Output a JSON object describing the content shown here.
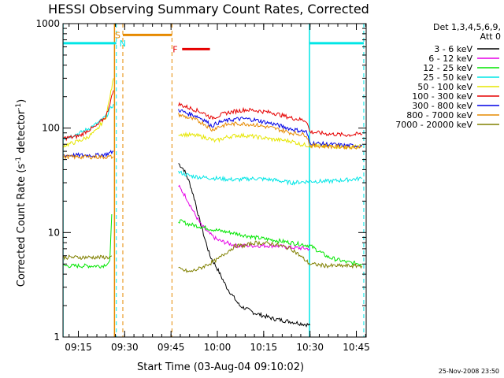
{
  "chart_data": {
    "type": "line",
    "title": "HESSI Observing Summary Count Rates, Corrected",
    "xlabel": "Start Time (03-Aug-04 09:10:02)",
    "ylabel_main": "Corrected Count Rate (s",
    "ylabel_sup1": "-1",
    "ylabel_mid": " detector",
    "ylabel_sup2": "-1",
    "ylabel_end": ")",
    "yscale": "log",
    "ylim": [
      1,
      1000
    ],
    "xlim": [
      9.1672,
      10.803
    ],
    "x_ticks": [
      {
        "v": 9.25,
        "label": "09:15"
      },
      {
        "v": 9.5,
        "label": "09:30"
      },
      {
        "v": 9.75,
        "label": "09:45"
      },
      {
        "v": 10.0,
        "label": "10:00"
      },
      {
        "v": 10.25,
        "label": "10:15"
      },
      {
        "v": 10.5,
        "label": "10:30"
      },
      {
        "v": 10.75,
        "label": "10:45"
      }
    ],
    "y_ticks": [
      {
        "v": 1,
        "label": "1"
      },
      {
        "v": 10,
        "label": "10"
      },
      {
        "v": 100,
        "label": "100"
      },
      {
        "v": 1000,
        "label": "1000"
      }
    ],
    "legend_header": [
      "Det 1,3,4,5,6,9,",
      "Att 0"
    ],
    "legend_position": "right",
    "timestamp": "25-Nov-2008 23:50",
    "series": [
      {
        "name": "3 - 6 keV",
        "color": "#000000",
        "segments": [
          [
            [
              9.79,
              46
            ],
            [
              9.82,
              40
            ],
            [
              9.85,
              30
            ],
            [
              9.88,
              20
            ],
            [
              9.9,
              14
            ],
            [
              9.93,
              9
            ],
            [
              9.96,
              6
            ],
            [
              10.0,
              4.5
            ],
            [
              10.05,
              3
            ],
            [
              10.12,
              2
            ],
            [
              10.2,
              1.7
            ],
            [
              10.3,
              1.5
            ],
            [
              10.4,
              1.4
            ],
            [
              10.5,
              1.3
            ]
          ]
        ]
      },
      {
        "name": "6 - 12 keV",
        "color": "#e600e6",
        "segments": [
          [
            [
              9.79,
              28
            ],
            [
              9.83,
              22
            ],
            [
              9.87,
              16
            ],
            [
              9.91,
              12
            ],
            [
              9.95,
              10
            ],
            [
              10.0,
              8.5
            ],
            [
              10.1,
              7.5
            ],
            [
              10.2,
              7.5
            ],
            [
              10.3,
              7.5
            ],
            [
              10.4,
              7.2
            ],
            [
              10.5,
              7.0
            ]
          ]
        ]
      },
      {
        "name": "12 - 25 keV",
        "color": "#00e600",
        "segments": [
          [
            [
              9.17,
              4.8
            ],
            [
              9.22,
              4.8
            ],
            [
              9.28,
              4.8
            ],
            [
              9.33,
              4.8
            ],
            [
              9.38,
              4.8
            ],
            [
              9.42,
              5.2
            ],
            [
              9.43,
              15
            ]
          ],
          [
            [
              9.79,
              13
            ],
            [
              9.85,
              12
            ],
            [
              9.9,
              11.5
            ],
            [
              10.0,
              10.5
            ],
            [
              10.1,
              9.8
            ],
            [
              10.2,
              9.0
            ],
            [
              10.3,
              8.5
            ],
            [
              10.4,
              8.0
            ],
            [
              10.5,
              7.5
            ],
            [
              10.6,
              5.8
            ],
            [
              10.7,
              5.2
            ],
            [
              10.78,
              5.0
            ]
          ]
        ]
      },
      {
        "name": "25 - 50 keV",
        "color": "#00e6e6",
        "segments": [
          [
            [
              9.17,
              80
            ],
            [
              9.22,
              85
            ],
            [
              9.26,
              90
            ],
            [
              9.3,
              98
            ],
            [
              9.35,
              110
            ],
            [
              9.4,
              130
            ],
            [
              9.44,
              170
            ]
          ],
          [
            [
              9.79,
              38
            ],
            [
              9.85,
              35
            ],
            [
              9.9,
              34
            ],
            [
              10.0,
              33
            ],
            [
              10.1,
              32
            ],
            [
              10.2,
              33
            ],
            [
              10.3,
              32
            ],
            [
              10.4,
              30
            ],
            [
              10.5,
              31
            ],
            [
              10.6,
              31
            ],
            [
              10.7,
              32
            ],
            [
              10.78,
              33
            ]
          ]
        ]
      },
      {
        "name": "50 - 100 keV",
        "color": "#e6e600",
        "segments": [
          [
            [
              9.17,
              68
            ],
            [
              9.22,
              72
            ],
            [
              9.26,
              76
            ],
            [
              9.3,
              82
            ],
            [
              9.35,
              95
            ],
            [
              9.4,
              130
            ],
            [
              9.44,
              300
            ]
          ],
          [
            [
              9.79,
              88
            ],
            [
              9.85,
              86
            ],
            [
              9.9,
              84
            ],
            [
              9.95,
              80
            ],
            [
              9.99,
              75
            ],
            [
              10.05,
              82
            ],
            [
              10.1,
              85
            ],
            [
              10.15,
              85
            ],
            [
              10.2,
              83
            ],
            [
              10.3,
              78
            ],
            [
              10.4,
              75
            ],
            [
              10.45,
              70
            ],
            [
              10.5,
              68
            ],
            [
              10.6,
              67
            ],
            [
              10.7,
              66
            ],
            [
              10.78,
              67
            ]
          ]
        ]
      },
      {
        "name": "100 - 300 keV",
        "color": "#e60000",
        "segments": [
          [
            [
              9.17,
              80
            ],
            [
              9.22,
              82
            ],
            [
              9.26,
              85
            ],
            [
              9.3,
              95
            ],
            [
              9.35,
              105
            ],
            [
              9.4,
              130
            ],
            [
              9.44,
              230
            ]
          ],
          [
            [
              9.79,
              170
            ],
            [
              9.83,
              160
            ],
            [
              9.88,
              150
            ],
            [
              9.93,
              138
            ],
            [
              9.97,
              125
            ],
            [
              10.0,
              130
            ],
            [
              10.05,
              140
            ],
            [
              10.1,
              145
            ],
            [
              10.15,
              150
            ],
            [
              10.2,
              148
            ],
            [
              10.3,
              140
            ],
            [
              10.4,
              125
            ],
            [
              10.48,
              118
            ],
            [
              10.5,
              92
            ],
            [
              10.6,
              88
            ],
            [
              10.7,
              86
            ],
            [
              10.78,
              88
            ]
          ]
        ]
      },
      {
        "name": "300 - 800 keV",
        "color": "#0000e6",
        "segments": [
          [
            [
              9.17,
              55
            ],
            [
              9.22,
              55
            ],
            [
              9.26,
              55
            ],
            [
              9.3,
              55
            ],
            [
              9.35,
              55
            ],
            [
              9.4,
              56
            ],
            [
              9.44,
              60
            ]
          ],
          [
            [
              9.79,
              150
            ],
            [
              9.83,
              140
            ],
            [
              9.88,
              132
            ],
            [
              9.93,
              120
            ],
            [
              9.97,
              105
            ],
            [
              10.0,
              112
            ],
            [
              10.05,
              118
            ],
            [
              10.1,
              122
            ],
            [
              10.15,
              123
            ],
            [
              10.2,
              120
            ],
            [
              10.3,
              110
            ],
            [
              10.4,
              98
            ],
            [
              10.48,
              92
            ],
            [
              10.5,
              72
            ],
            [
              10.6,
              70
            ],
            [
              10.7,
              68
            ],
            [
              10.78,
              68
            ]
          ]
        ]
      },
      {
        "name": "800 - 7000 keV",
        "color": "#e68a00",
        "segments": [
          [
            [
              9.17,
              53
            ],
            [
              9.22,
              53
            ],
            [
              9.26,
              53
            ],
            [
              9.3,
              53
            ],
            [
              9.35,
              53
            ],
            [
              9.4,
              53
            ],
            [
              9.44,
              53
            ]
          ],
          [
            [
              9.79,
              135
            ],
            [
              9.83,
              128
            ],
            [
              9.88,
              120
            ],
            [
              9.93,
              110
            ],
            [
              9.97,
              96
            ],
            [
              10.0,
              102
            ],
            [
              10.05,
              108
            ],
            [
              10.1,
              110
            ],
            [
              10.15,
              110
            ],
            [
              10.2,
              108
            ],
            [
              10.3,
              100
            ],
            [
              10.4,
              90
            ],
            [
              10.48,
              86
            ],
            [
              10.5,
              68
            ],
            [
              10.6,
              67
            ],
            [
              10.7,
              66
            ],
            [
              10.78,
              66
            ]
          ]
        ]
      },
      {
        "name": "7000 - 20000 keV",
        "color": "#808000",
        "segments": [
          [
            [
              9.17,
              5.8
            ],
            [
              9.22,
              5.8
            ],
            [
              9.28,
              5.8
            ],
            [
              9.33,
              5.8
            ],
            [
              9.38,
              5.8
            ],
            [
              9.42,
              5.8
            ],
            [
              9.43,
              6
            ]
          ],
          [
            [
              9.79,
              4.5
            ],
            [
              9.85,
              4.2
            ],
            [
              9.9,
              4.5
            ],
            [
              10.0,
              5.5
            ],
            [
              10.05,
              6.5
            ],
            [
              10.1,
              7.5
            ],
            [
              10.15,
              7.5
            ],
            [
              10.2,
              8.0
            ],
            [
              10.3,
              7.8
            ],
            [
              10.4,
              7.0
            ],
            [
              10.5,
              5.0
            ],
            [
              10.6,
              4.8
            ],
            [
              10.7,
              4.8
            ],
            [
              10.78,
              4.8
            ]
          ]
        ]
      }
    ],
    "background_series": [
      {
        "name": "12 - 25 keV",
        "color": "#00e600",
        "points": [
          [
            9.17,
            4.8
          ],
          [
            9.43,
            4.8
          ]
        ]
      }
    ],
    "markers": {
      "solid_cyan_x": [
        9.1672,
        10.497
      ],
      "dashed_cyan_x": [
        9.455,
        10.79
      ],
      "solid_orange_x": [
        9.445
      ],
      "dashed_orange_x": [
        9.49,
        9.755
      ],
      "night_bars": {
        "color": "#00e6e6",
        "y": 650,
        "spans": [
          [
            9.1672,
            9.455
          ],
          [
            10.497,
            10.79
          ]
        ]
      },
      "saa_bar": {
        "color": "#e68a00",
        "y": 780,
        "span": [
          9.49,
          9.755
        ],
        "label": "S"
      },
      "flare_bar": {
        "color": "#e60000",
        "y": 570,
        "span": [
          9.81,
          9.96
        ],
        "label": "F"
      },
      "night_label": "N"
    }
  }
}
